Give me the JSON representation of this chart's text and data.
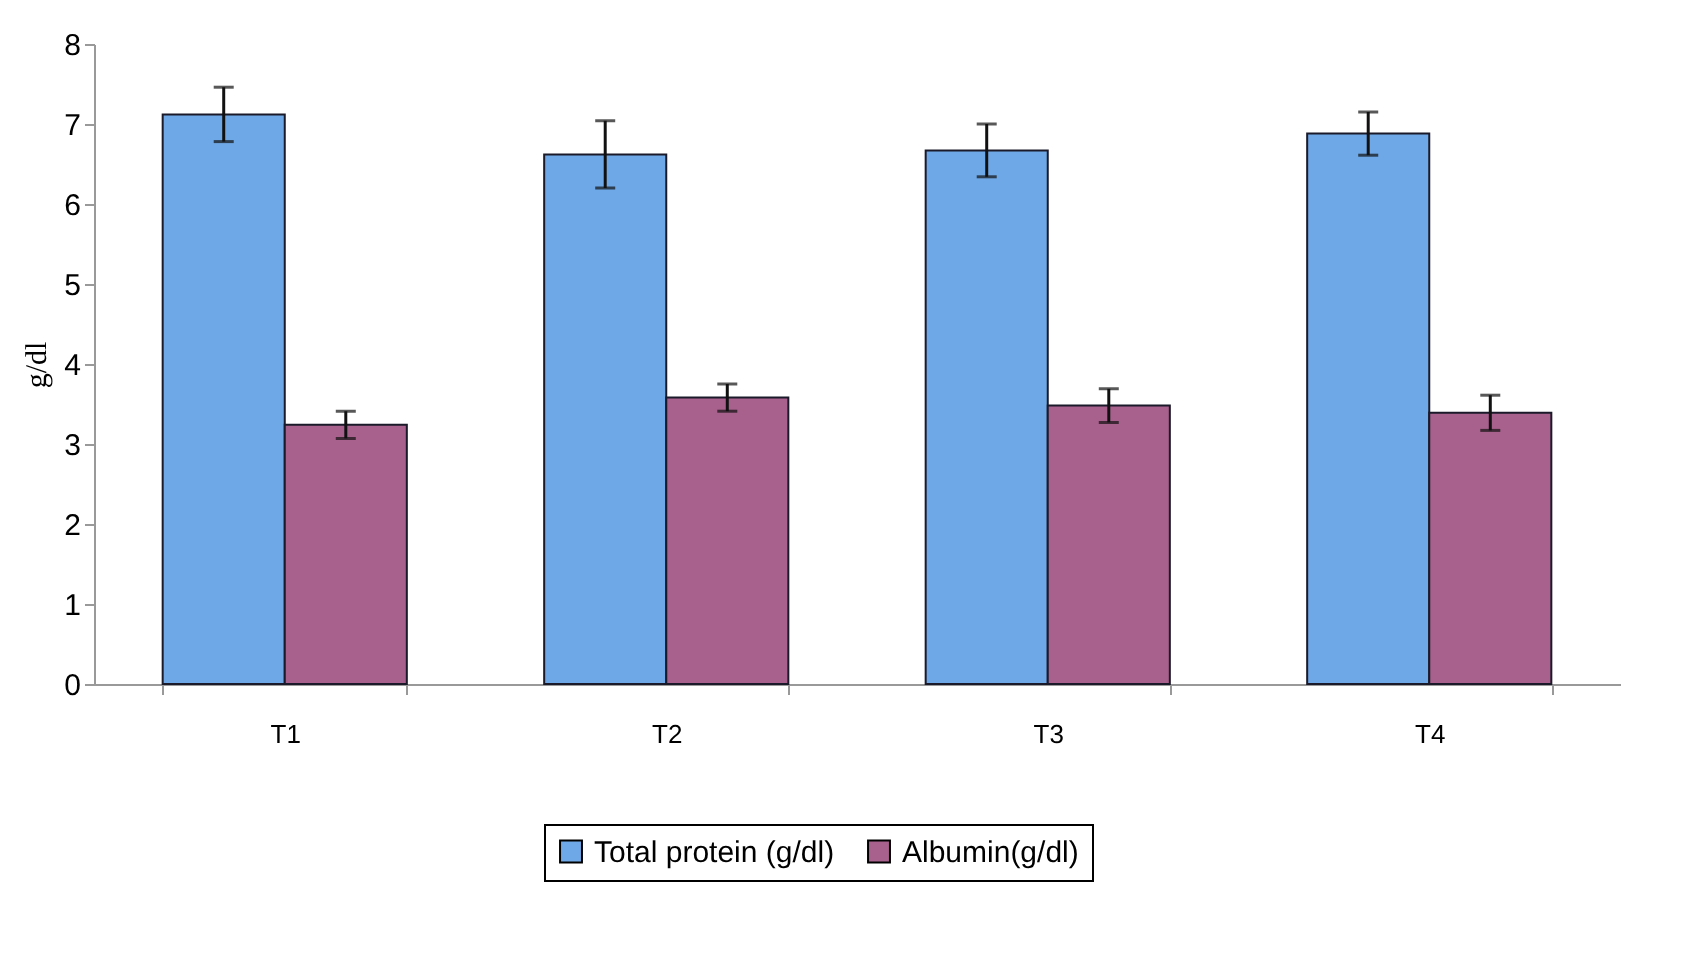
{
  "chart_data": {
    "type": "bar",
    "ylabel": "g/dl",
    "categories": [
      "T1",
      "T2",
      "T3",
      "T4"
    ],
    "series": [
      {
        "name": "Total protein (g/dl)",
        "color": "#6fa8e6",
        "values": [
          7.12,
          6.62,
          6.67,
          6.88
        ],
        "errors": [
          0.34,
          0.42,
          0.33,
          0.27
        ]
      },
      {
        "name": "Albumin(g/dl)",
        "color": "#a8608c",
        "values": [
          3.24,
          3.58,
          3.48,
          3.39
        ],
        "errors": [
          0.17,
          0.17,
          0.21,
          0.22
        ]
      }
    ],
    "ylim": [
      0,
      8
    ],
    "yticks": [
      0,
      1,
      2,
      3,
      4,
      5,
      6,
      7,
      8
    ],
    "grid": false,
    "legend": "bottom"
  }
}
